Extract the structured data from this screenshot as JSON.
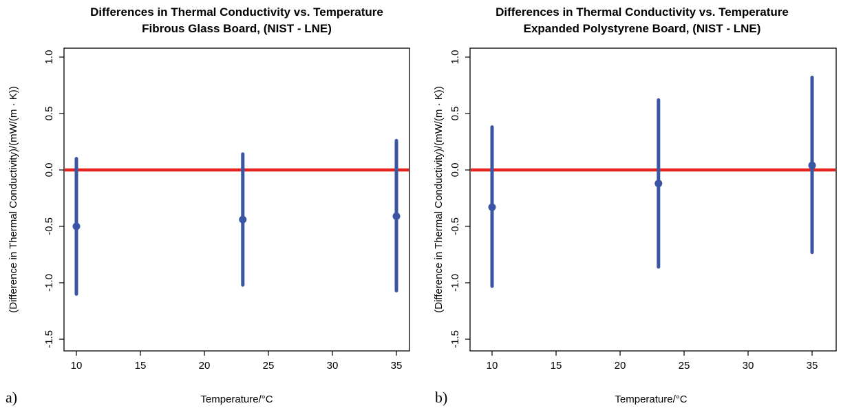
{
  "chart_data": [
    {
      "type": "scatter",
      "panel_label": "a)",
      "title": "Differences in Thermal Conductivity vs. Temperature",
      "subtitle": "Fibrous Glass Board, (NIST - LNE)",
      "xlabel": "Temperature/°C",
      "ylabel": "(Difference in Thermal Conductivity)/(mW/(m  · K))",
      "xlim": [
        9,
        36
      ],
      "ylim": [
        -1.6,
        1.1
      ],
      "xticks": [
        10,
        15,
        20,
        25,
        30,
        35
      ],
      "yticks": [
        -1.5,
        -1.0,
        -0.5,
        0.0,
        0.5,
        1.0
      ],
      "xtick_labels": [
        "10",
        "15",
        "20",
        "25",
        "30",
        "35"
      ],
      "ytick_labels": [
        "-1.5",
        "-1.0",
        "-0.5",
        "0.0",
        "0.5",
        "1.0"
      ],
      "reference_line": 0.0,
      "grid": false,
      "points": [
        {
          "x": 10,
          "y": -0.5,
          "lower": -1.1,
          "upper": 0.1
        },
        {
          "x": 23,
          "y": -0.44,
          "lower": -1.02,
          "upper": 0.14
        },
        {
          "x": 35,
          "y": -0.41,
          "lower": -1.07,
          "upper": 0.26
        }
      ]
    },
    {
      "type": "scatter",
      "panel_label": "b)",
      "title": "Differences in Thermal Conductivity vs. Temperature",
      "subtitle": "Expanded Polystyrene Board, (NIST - LNE)",
      "xlabel": "Temperature/°C",
      "ylabel": "(Difference in Thermal Conductivity)/(mW/(m  · K))",
      "xlim": [
        9,
        36
      ],
      "ylim": [
        -1.6,
        1.1
      ],
      "xticks": [
        10,
        15,
        20,
        25,
        30,
        35
      ],
      "yticks": [
        -1.5,
        -1.0,
        -0.5,
        0.0,
        0.5,
        1.0
      ],
      "xtick_labels": [
        "10",
        "15",
        "20",
        "25",
        "30",
        "35"
      ],
      "ytick_labels": [
        "-1.5",
        "-1.0",
        "-0.5",
        "0.0",
        "0.5",
        "1.0"
      ],
      "reference_line": 0.0,
      "grid": false,
      "points": [
        {
          "x": 10,
          "y": -0.33,
          "lower": -1.03,
          "upper": 0.38
        },
        {
          "x": 23,
          "y": -0.12,
          "lower": -0.86,
          "upper": 0.62
        },
        {
          "x": 35,
          "y": 0.04,
          "lower": -0.73,
          "upper": 0.82
        }
      ]
    }
  ],
  "colors": {
    "series": "#3a55a4",
    "reference_line": "#e3231f",
    "axis": "#000000"
  }
}
